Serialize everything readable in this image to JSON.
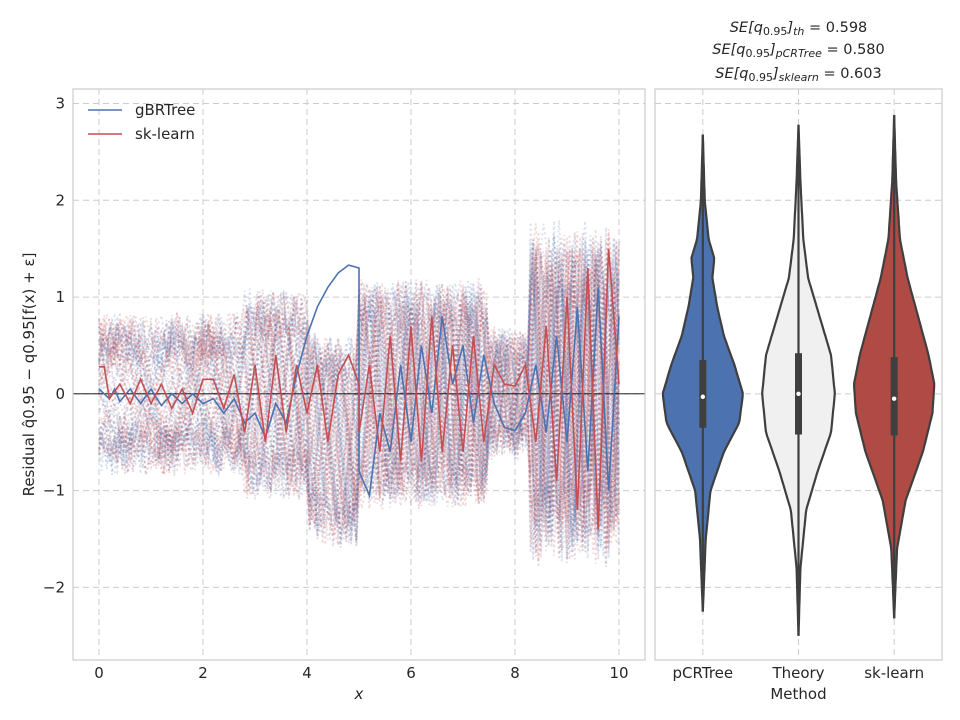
{
  "chart_data": [
    {
      "type": "line",
      "xlabel": "x",
      "ylabel": "Residual q̂0.95 − q0.95[f(x) + ε]",
      "xlim": [
        -0.5,
        10.5
      ],
      "ylim": [
        -2.75,
        3.15
      ],
      "x_ticks": [
        "0",
        "2",
        "4",
        "6",
        "8",
        "10"
      ],
      "x_tick_values": [
        0,
        2,
        4,
        6,
        8,
        10
      ],
      "y_ticks": [
        "−2",
        "−1",
        "0",
        "1",
        "2",
        "3"
      ],
      "y_tick_values": [
        -2,
        -1,
        0,
        1,
        2,
        3
      ],
      "grid": true,
      "legend_position": "top-left",
      "colors": {
        "gbrtree": "#4c72b0",
        "sklearn": "#c44e52"
      },
      "series": [
        {
          "name": "gBRTree",
          "x": [
            0.0,
            0.2,
            0.3,
            0.4,
            0.6,
            0.8,
            1.0,
            1.2,
            1.4,
            1.6,
            1.8,
            2.0,
            2.2,
            2.4,
            2.6,
            2.8,
            3.0,
            3.2,
            3.4,
            3.6,
            3.8,
            4.0,
            4.2,
            4.4,
            4.6,
            4.8,
            5.0,
            5.0,
            5.2,
            5.4,
            5.6,
            5.8,
            6.0,
            6.2,
            6.4,
            6.6,
            6.8,
            7.0,
            7.2,
            7.4,
            7.6,
            7.8,
            8.0,
            8.2,
            8.4,
            8.6,
            8.8,
            9.0,
            9.2,
            9.4,
            9.6,
            9.8,
            10.0
          ],
          "y": [
            0.05,
            -0.05,
            0.05,
            -0.08,
            0.05,
            -0.1,
            0.05,
            -0.12,
            0.0,
            -0.1,
            0.0,
            -0.1,
            -0.05,
            -0.2,
            -0.05,
            -0.3,
            -0.2,
            -0.45,
            -0.1,
            -0.3,
            0.2,
            0.6,
            0.9,
            1.1,
            1.25,
            1.33,
            1.3,
            -0.8,
            -1.05,
            -0.2,
            -0.6,
            0.3,
            -0.5,
            0.5,
            -0.2,
            0.8,
            0.1,
            0.5,
            -0.3,
            0.4,
            -0.1,
            -0.35,
            -0.38,
            -0.2,
            0.3,
            -0.4,
            0.6,
            -0.5,
            0.9,
            -0.8,
            1.1,
            -1.0,
            0.8
          ]
        },
        {
          "name": "sk-learn",
          "x": [
            0.0,
            0.1,
            0.2,
            0.4,
            0.6,
            0.8,
            1.0,
            1.2,
            1.4,
            1.6,
            1.8,
            2.0,
            2.2,
            2.4,
            2.6,
            2.8,
            3.0,
            3.2,
            3.4,
            3.6,
            3.8,
            4.0,
            4.2,
            4.4,
            4.6,
            4.8,
            5.0,
            5.0,
            5.2,
            5.4,
            5.6,
            5.8,
            6.0,
            6.2,
            6.4,
            6.6,
            6.8,
            7.0,
            7.2,
            7.4,
            7.6,
            7.8,
            8.0,
            8.2,
            8.4,
            8.6,
            8.8,
            9.0,
            9.2,
            9.4,
            9.6,
            9.8,
            10.0
          ],
          "y": [
            0.28,
            0.28,
            -0.05,
            0.1,
            -0.1,
            0.15,
            -0.1,
            0.1,
            -0.15,
            0.05,
            -0.2,
            0.15,
            0.15,
            -0.15,
            0.2,
            -0.4,
            0.3,
            -0.5,
            0.4,
            -0.4,
            0.3,
            -0.2,
            0.3,
            -0.5,
            0.2,
            0.4,
            0.1,
            -0.4,
            0.3,
            -0.6,
            0.6,
            -0.7,
            0.7,
            -0.7,
            0.8,
            -0.6,
            0.5,
            -0.6,
            0.6,
            -0.5,
            0.3,
            0.1,
            0.08,
            0.3,
            -0.5,
            0.7,
            -0.9,
            1.0,
            -1.2,
            1.3,
            -1.4,
            1.5,
            0.1
          ]
        }
      ]
    },
    {
      "type": "violin",
      "xlabel": "Method",
      "categories": [
        "pCRTree",
        "Theory",
        "sk-learn"
      ],
      "ylim": [
        -2.75,
        3.15
      ],
      "grid": true,
      "title_lines": [
        {
          "label": "SE[q",
          "sub": "0.95",
          "sub2": "th",
          "value": " = 0.598"
        },
        {
          "label": "SE[q",
          "sub": "0.95",
          "sub2": "pCRTree",
          "value": " = 0.580"
        },
        {
          "label": "SE[q",
          "sub": "0.95",
          "sub2": "sklearn",
          "value": " = 0.603"
        }
      ],
      "colors": {
        "pCRTree": "#4c72b0",
        "Theory": "#f0f0f0",
        "sk-learn": "#b04a44",
        "outline": "#3f3f3f"
      },
      "violins": [
        {
          "name": "pCRTree",
          "min": -2.25,
          "max": 2.68,
          "q1": -0.35,
          "median": -0.03,
          "q3": 0.35,
          "profile": [
            [
              -2.25,
              0.0
            ],
            [
              -1.5,
              0.03
            ],
            [
              -1.0,
              0.08
            ],
            [
              -0.6,
              0.22
            ],
            [
              -0.3,
              0.38
            ],
            [
              0.0,
              0.42
            ],
            [
              0.3,
              0.33
            ],
            [
              0.6,
              0.22
            ],
            [
              0.9,
              0.15
            ],
            [
              1.2,
              0.1
            ],
            [
              1.4,
              0.12
            ],
            [
              1.6,
              0.06
            ],
            [
              2.0,
              0.02
            ],
            [
              2.68,
              0.0
            ]
          ]
        },
        {
          "name": "Theory",
          "min": -2.5,
          "max": 2.78,
          "q1": -0.42,
          "median": 0.0,
          "q3": 0.42,
          "profile": [
            [
              -2.5,
              0.0
            ],
            [
              -1.8,
              0.02
            ],
            [
              -1.2,
              0.08
            ],
            [
              -0.8,
              0.2
            ],
            [
              -0.4,
              0.34
            ],
            [
              0.0,
              0.38
            ],
            [
              0.4,
              0.34
            ],
            [
              0.8,
              0.22
            ],
            [
              1.2,
              0.1
            ],
            [
              1.6,
              0.05
            ],
            [
              2.2,
              0.02
            ],
            [
              2.78,
              0.0
            ]
          ]
        },
        {
          "name": "sk-learn",
          "min": -2.32,
          "max": 2.88,
          "q1": -0.43,
          "median": -0.05,
          "q3": 0.38,
          "profile": [
            [
              -2.32,
              0.0
            ],
            [
              -1.6,
              0.03
            ],
            [
              -1.1,
              0.12
            ],
            [
              -0.6,
              0.3
            ],
            [
              -0.2,
              0.4
            ],
            [
              0.1,
              0.42
            ],
            [
              0.4,
              0.36
            ],
            [
              0.8,
              0.25
            ],
            [
              1.2,
              0.14
            ],
            [
              1.6,
              0.06
            ],
            [
              2.2,
              0.02
            ],
            [
              2.88,
              0.0
            ]
          ]
        }
      ]
    }
  ]
}
